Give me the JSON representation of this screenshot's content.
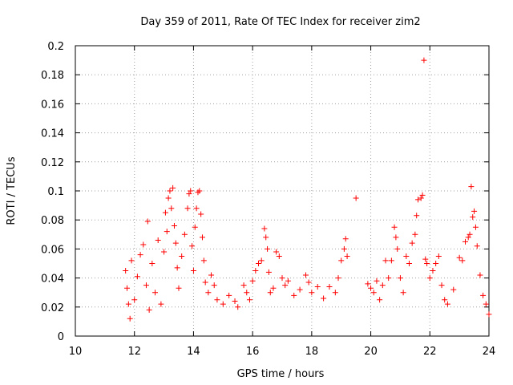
{
  "chart_data": {
    "type": "scatter",
    "title": "Day 359 of 2011, Rate Of TEC Index for receiver zim2",
    "xlabel": "GPS time / hours",
    "ylabel": "ROTI / TECUs",
    "xlim": [
      10,
      24
    ],
    "ylim": [
      0,
      0.2
    ],
    "xticks": [
      "10",
      "12",
      "14",
      "16",
      "18",
      "20",
      "22",
      "24"
    ],
    "yticks": [
      "0",
      "0.02",
      "0.04",
      "0.06",
      "0.08",
      "0.1",
      "0.12",
      "0.14",
      "0.16",
      "0.18",
      "0.2"
    ],
    "grid": true,
    "marker": "+",
    "color": "#ff0000",
    "series": [
      {
        "name": "ROTI",
        "points": [
          [
            11.7,
            0.045
          ],
          [
            11.75,
            0.033
          ],
          [
            11.8,
            0.022
          ],
          [
            11.85,
            0.012
          ],
          [
            11.9,
            0.052
          ],
          [
            12.0,
            0.025
          ],
          [
            12.1,
            0.041
          ],
          [
            12.2,
            0.056
          ],
          [
            12.3,
            0.063
          ],
          [
            12.4,
            0.035
          ],
          [
            12.45,
            0.079
          ],
          [
            12.5,
            0.018
          ],
          [
            12.6,
            0.05
          ],
          [
            12.7,
            0.03
          ],
          [
            12.8,
            0.066
          ],
          [
            12.9,
            0.022
          ],
          [
            13.0,
            0.058
          ],
          [
            13.05,
            0.085
          ],
          [
            13.1,
            0.072
          ],
          [
            13.15,
            0.095
          ],
          [
            13.2,
            0.1
          ],
          [
            13.25,
            0.088
          ],
          [
            13.3,
            0.102
          ],
          [
            13.35,
            0.076
          ],
          [
            13.4,
            0.064
          ],
          [
            13.45,
            0.047
          ],
          [
            13.5,
            0.033
          ],
          [
            13.6,
            0.055
          ],
          [
            13.7,
            0.07
          ],
          [
            13.8,
            0.088
          ],
          [
            13.85,
            0.098
          ],
          [
            13.9,
            0.1
          ],
          [
            13.95,
            0.062
          ],
          [
            14.0,
            0.045
          ],
          [
            14.05,
            0.075
          ],
          [
            14.1,
            0.088
          ],
          [
            14.15,
            0.099
          ],
          [
            14.2,
            0.1
          ],
          [
            14.25,
            0.084
          ],
          [
            14.3,
            0.068
          ],
          [
            14.35,
            0.052
          ],
          [
            14.4,
            0.037
          ],
          [
            14.5,
            0.03
          ],
          [
            14.6,
            0.042
          ],
          [
            14.7,
            0.035
          ],
          [
            14.8,
            0.025
          ],
          [
            15.0,
            0.022
          ],
          [
            15.2,
            0.028
          ],
          [
            15.4,
            0.024
          ],
          [
            15.5,
            0.02
          ],
          [
            15.7,
            0.035
          ],
          [
            15.8,
            0.03
          ],
          [
            15.9,
            0.025
          ],
          [
            16.0,
            0.038
          ],
          [
            16.1,
            0.045
          ],
          [
            16.2,
            0.05
          ],
          [
            16.3,
            0.052
          ],
          [
            16.4,
            0.074
          ],
          [
            16.45,
            0.068
          ],
          [
            16.5,
            0.06
          ],
          [
            16.55,
            0.044
          ],
          [
            16.6,
            0.03
          ],
          [
            16.7,
            0.033
          ],
          [
            16.8,
            0.058
          ],
          [
            16.9,
            0.055
          ],
          [
            17.0,
            0.04
          ],
          [
            17.1,
            0.035
          ],
          [
            17.2,
            0.038
          ],
          [
            17.4,
            0.028
          ],
          [
            17.6,
            0.032
          ],
          [
            17.8,
            0.042
          ],
          [
            17.9,
            0.037
          ],
          [
            18.0,
            0.03
          ],
          [
            18.2,
            0.034
          ],
          [
            18.4,
            0.026
          ],
          [
            18.6,
            0.034
          ],
          [
            18.8,
            0.03
          ],
          [
            18.9,
            0.04
          ],
          [
            19.0,
            0.052
          ],
          [
            19.1,
            0.06
          ],
          [
            19.15,
            0.067
          ],
          [
            19.2,
            0.055
          ],
          [
            19.5,
            0.095
          ],
          [
            19.9,
            0.036
          ],
          [
            20.0,
            0.033
          ],
          [
            20.1,
            0.03
          ],
          [
            20.2,
            0.038
          ],
          [
            20.3,
            0.025
          ],
          [
            20.4,
            0.035
          ],
          [
            20.5,
            0.052
          ],
          [
            20.6,
            0.04
          ],
          [
            20.7,
            0.052
          ],
          [
            20.8,
            0.075
          ],
          [
            20.85,
            0.068
          ],
          [
            20.9,
            0.06
          ],
          [
            21.0,
            0.04
          ],
          [
            21.1,
            0.03
          ],
          [
            21.2,
            0.055
          ],
          [
            21.3,
            0.05
          ],
          [
            21.4,
            0.064
          ],
          [
            21.5,
            0.07
          ],
          [
            21.55,
            0.083
          ],
          [
            21.6,
            0.094
          ],
          [
            21.7,
            0.095
          ],
          [
            21.75,
            0.097
          ],
          [
            21.8,
            0.19
          ],
          [
            21.85,
            0.053
          ],
          [
            21.9,
            0.05
          ],
          [
            22.0,
            0.04
          ],
          [
            22.1,
            0.045
          ],
          [
            22.2,
            0.05
          ],
          [
            22.3,
            0.055
          ],
          [
            22.4,
            0.035
          ],
          [
            22.5,
            0.025
          ],
          [
            22.6,
            0.022
          ],
          [
            22.8,
            0.032
          ],
          [
            23.0,
            0.054
          ],
          [
            23.1,
            0.052
          ],
          [
            23.2,
            0.065
          ],
          [
            23.3,
            0.068
          ],
          [
            23.35,
            0.07
          ],
          [
            23.4,
            0.103
          ],
          [
            23.45,
            0.082
          ],
          [
            23.5,
            0.086
          ],
          [
            23.55,
            0.075
          ],
          [
            23.6,
            0.062
          ],
          [
            23.7,
            0.042
          ],
          [
            23.8,
            0.028
          ],
          [
            23.9,
            0.022
          ],
          [
            24.0,
            0.015
          ]
        ]
      }
    ]
  }
}
